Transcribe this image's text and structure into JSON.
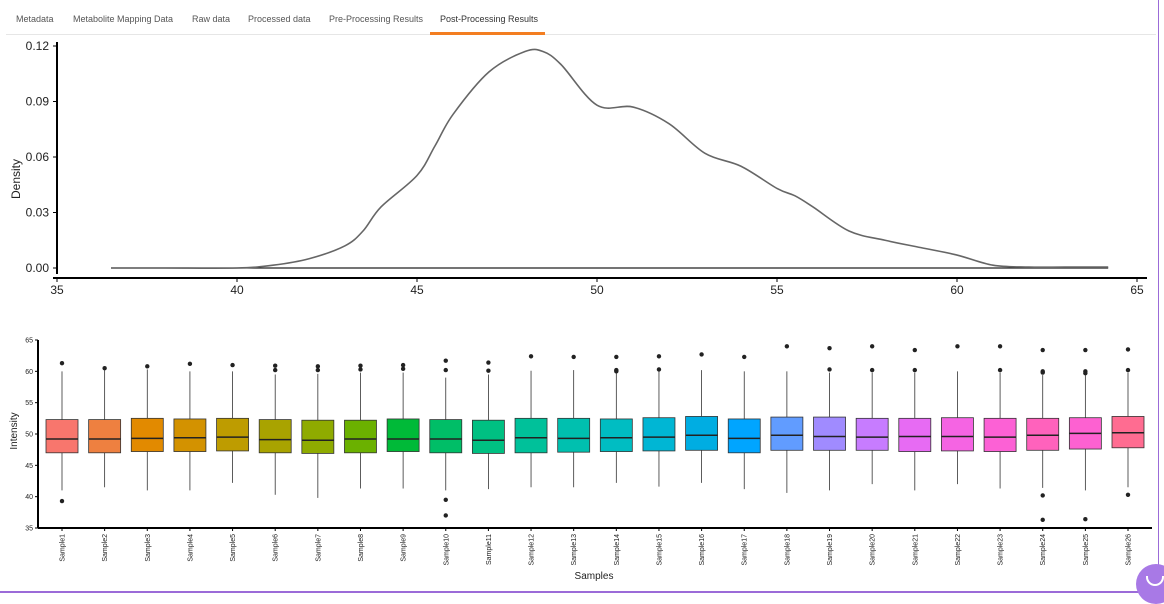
{
  "tabs": [
    {
      "label": "Metadata",
      "active": false
    },
    {
      "label": "Metabolite Mapping Data",
      "active": false
    },
    {
      "label": "Raw data",
      "active": false
    },
    {
      "label": "Processed data",
      "active": false
    },
    {
      "label": "Pre-Processing Results",
      "active": false
    },
    {
      "label": "Post-Processing Results",
      "active": true
    }
  ],
  "colors": {
    "accent": "#f37e21",
    "border": "#9b6bd8",
    "line": "#666666"
  },
  "chart_data": [
    {
      "type": "line",
      "title": "",
      "xlabel": "",
      "ylabel": "Density",
      "xlim": [
        35,
        65
      ],
      "ylim": [
        0,
        0.12
      ],
      "xticks": [
        "35",
        "40",
        "45",
        "50",
        "55",
        "60",
        "65"
      ],
      "yticks": [
        "0.00",
        "0.03",
        "0.06",
        "0.09",
        "0.12"
      ],
      "baseline": {
        "x": [
          36.5,
          64.2
        ],
        "y": 0
      },
      "series": [
        {
          "name": "density",
          "x": [
            36.5,
            38,
            40,
            41,
            42,
            43,
            43.5,
            44,
            45,
            45.5,
            46,
            47,
            48,
            48.5,
            49,
            50,
            51,
            52,
            53,
            54,
            55,
            55.5,
            56,
            57,
            58,
            59,
            60,
            61,
            62,
            63,
            64.2
          ],
          "y": [
            0,
            0,
            0,
            0.0015,
            0.005,
            0.012,
            0.02,
            0.033,
            0.05,
            0.066,
            0.083,
            0.106,
            0.117,
            0.117,
            0.11,
            0.088,
            0.087,
            0.078,
            0.062,
            0.055,
            0.043,
            0.039,
            0.033,
            0.02,
            0.015,
            0.011,
            0.007,
            0.0015,
            0.0005,
            0.0005,
            0.0005
          ]
        }
      ]
    },
    {
      "type": "box",
      "title": "",
      "xlabel": "Samples",
      "ylabel": "Intensity",
      "ylim": [
        35,
        65
      ],
      "yticks": [
        "35",
        "40",
        "45",
        "50",
        "55",
        "60",
        "65"
      ],
      "categories": [
        "Sample1",
        "Sample2",
        "Sample3",
        "Sample4",
        "Sample5",
        "Sample6",
        "Sample7",
        "Sample8",
        "Sample9",
        "Sample10",
        "Sample11",
        "Sample12",
        "Sample13",
        "Sample14",
        "Sample15",
        "Sample16",
        "Sample17",
        "Sample18",
        "Sample19",
        "Sample20",
        "Sample21",
        "Sample22",
        "Sample23",
        "Sample24",
        "Sample25",
        "Sample26"
      ],
      "colors": [
        "#f8766d",
        "#ee8040",
        "#e28a00",
        "#d39200",
        "#be9c00",
        "#a9a300",
        "#8fab00",
        "#6bb100",
        "#00ba38",
        "#00be67",
        "#00c082",
        "#00c19a",
        "#00c0af",
        "#00bdc2",
        "#00b6d4",
        "#00ade2",
        "#00a5ff",
        "#619cff",
        "#a08bff",
        "#c77cff",
        "#e76bf3",
        "#f564e3",
        "#fc61d5",
        "#ff62bc",
        "#fd61d1",
        "#ff6c91"
      ],
      "stats": [
        {
          "min": 41.0,
          "q1": 47.0,
          "median": 49.2,
          "q3": 52.3,
          "max": 60.0,
          "outliers": [
            61.3,
            39.3
          ]
        },
        {
          "min": 41.5,
          "q1": 47.0,
          "median": 49.2,
          "q3": 52.3,
          "max": 60.2,
          "outliers": [
            60.5
          ]
        },
        {
          "min": 41.0,
          "q1": 47.2,
          "median": 49.3,
          "q3": 52.5,
          "max": 60.3,
          "outliers": [
            60.8
          ]
        },
        {
          "min": 41.0,
          "q1": 47.2,
          "median": 49.4,
          "q3": 52.4,
          "max": 60.0,
          "outliers": [
            61.2
          ]
        },
        {
          "min": 42.2,
          "q1": 47.3,
          "median": 49.5,
          "q3": 52.5,
          "max": 60.0,
          "outliers": [
            61.0
          ]
        },
        {
          "min": 40.3,
          "q1": 47.0,
          "median": 49.1,
          "q3": 52.3,
          "max": 59.5,
          "outliers": [
            60.9,
            60.2
          ]
        },
        {
          "min": 39.8,
          "q1": 46.9,
          "median": 49.0,
          "q3": 52.2,
          "max": 59.6,
          "outliers": [
            60.8,
            60.2
          ]
        },
        {
          "min": 41.3,
          "q1": 47.0,
          "median": 49.2,
          "q3": 52.2,
          "max": 59.8,
          "outliers": [
            60.9,
            60.3
          ]
        },
        {
          "min": 41.3,
          "q1": 47.2,
          "median": 49.2,
          "q3": 52.4,
          "max": 59.8,
          "outliers": [
            61.0,
            60.4
          ]
        },
        {
          "min": 41.0,
          "q1": 47.0,
          "median": 49.2,
          "q3": 52.3,
          "max": 59.0,
          "outliers": [
            61.7,
            60.2,
            39.5,
            37.0
          ]
        },
        {
          "min": 41.2,
          "q1": 46.9,
          "median": 49.0,
          "q3": 52.2,
          "max": 59.5,
          "outliers": [
            61.4,
            60.1
          ]
        },
        {
          "min": 41.5,
          "q1": 47.0,
          "median": 49.4,
          "q3": 52.5,
          "max": 60.1,
          "outliers": [
            62.4
          ]
        },
        {
          "min": 41.5,
          "q1": 47.1,
          "median": 49.3,
          "q3": 52.5,
          "max": 60.2,
          "outliers": [
            62.3
          ]
        },
        {
          "min": 42.2,
          "q1": 47.2,
          "median": 49.4,
          "q3": 52.4,
          "max": 59.8,
          "outliers": [
            62.3,
            60.2,
            60.0
          ]
        },
        {
          "min": 41.6,
          "q1": 47.3,
          "median": 49.5,
          "q3": 52.6,
          "max": 60.0,
          "outliers": [
            62.4,
            60.3
          ]
        },
        {
          "min": 42.2,
          "q1": 47.4,
          "median": 49.8,
          "q3": 52.8,
          "max": 60.2,
          "outliers": [
            62.7
          ]
        },
        {
          "min": 41.2,
          "q1": 47.0,
          "median": 49.3,
          "q3": 52.4,
          "max": 60.0,
          "outliers": [
            62.3
          ]
        },
        {
          "min": 40.6,
          "q1": 47.4,
          "median": 49.8,
          "q3": 52.7,
          "max": 60.0,
          "outliers": [
            64.0
          ]
        },
        {
          "min": 41.0,
          "q1": 47.4,
          "median": 49.6,
          "q3": 52.7,
          "max": 59.8,
          "outliers": [
            63.7,
            60.3
          ]
        },
        {
          "min": 42.0,
          "q1": 47.4,
          "median": 49.5,
          "q3": 52.5,
          "max": 59.8,
          "outliers": [
            64.0,
            60.2
          ]
        },
        {
          "min": 41.0,
          "q1": 47.2,
          "median": 49.6,
          "q3": 52.5,
          "max": 59.8,
          "outliers": [
            63.4,
            60.2
          ]
        },
        {
          "min": 42.0,
          "q1": 47.3,
          "median": 49.6,
          "q3": 52.6,
          "max": 60.0,
          "outliers": [
            64.0
          ]
        },
        {
          "min": 41.3,
          "q1": 47.2,
          "median": 49.5,
          "q3": 52.5,
          "max": 59.8,
          "outliers": [
            64.0,
            60.2
          ]
        },
        {
          "min": 41.4,
          "q1": 47.4,
          "median": 49.8,
          "q3": 52.5,
          "max": 59.4,
          "outliers": [
            63.4,
            60.0,
            59.8,
            40.2,
            36.3
          ]
        },
        {
          "min": 41.0,
          "q1": 47.6,
          "median": 50.1,
          "q3": 52.6,
          "max": 59.4,
          "outliers": [
            63.4,
            60.0,
            59.7,
            36.4
          ]
        },
        {
          "min": 41.5,
          "q1": 47.8,
          "median": 50.2,
          "q3": 52.8,
          "max": 59.8,
          "outliers": [
            63.5,
            60.2,
            40.3
          ]
        }
      ]
    }
  ]
}
